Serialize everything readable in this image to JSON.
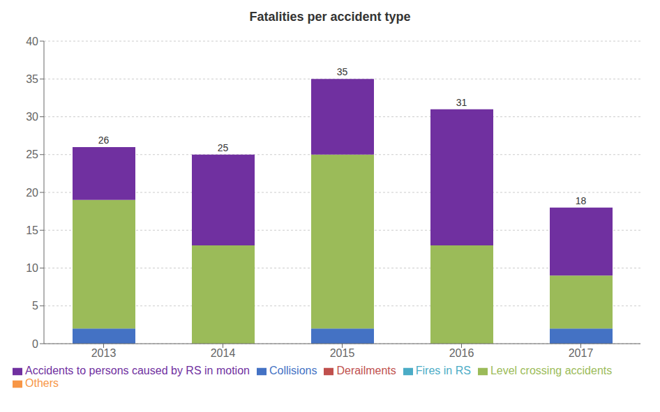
{
  "chart_data": {
    "type": "bar",
    "title": "Fatalities per accident type",
    "stacked": true,
    "categories": [
      "2013",
      "2014",
      "2015",
      "2016",
      "2017"
    ],
    "series": [
      {
        "name": "Collisions",
        "color": "#4472C4",
        "values": [
          2,
          0,
          2,
          0,
          2
        ]
      },
      {
        "name": "Derailments",
        "color": "#C0504D",
        "values": [
          0,
          0,
          0,
          0,
          0
        ]
      },
      {
        "name": "Level crossing accidents",
        "color": "#9BBB59",
        "values": [
          17,
          13,
          23,
          13,
          7
        ]
      },
      {
        "name": "Accidents to persons caused by RS in motion",
        "color": "#7030A0",
        "values": [
          7,
          12,
          10,
          18,
          9
        ]
      },
      {
        "name": "Fires in RS",
        "color": "#4BACC6",
        "values": [
          0,
          0,
          0,
          0,
          0
        ]
      },
      {
        "name": "Others",
        "color": "#F79646",
        "values": [
          0,
          0,
          0,
          0,
          0
        ]
      }
    ],
    "totals": [
      26,
      25,
      35,
      31,
      18
    ],
    "ylim": [
      0,
      40
    ],
    "yticks": [
      0,
      5,
      10,
      15,
      20,
      25,
      30,
      35,
      40
    ],
    "grid": true,
    "legend": "bottom"
  }
}
